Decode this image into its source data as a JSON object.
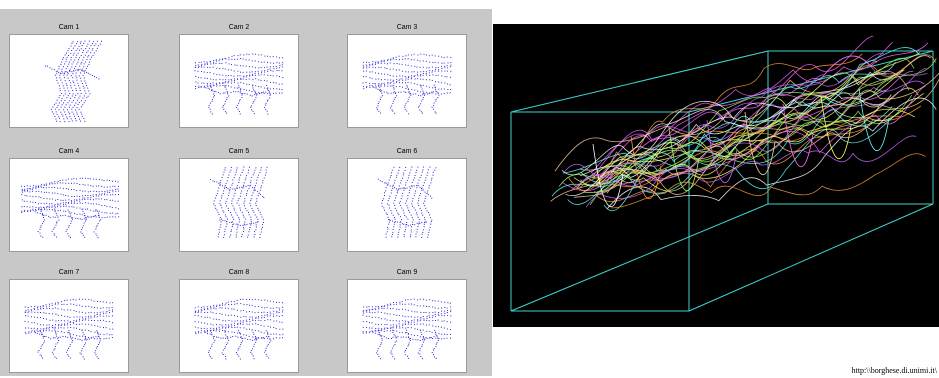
{
  "cameras": [
    {
      "label": "Cam 1",
      "pose": "side"
    },
    {
      "label": "Cam 2",
      "pose": "top"
    },
    {
      "label": "Cam 3",
      "pose": "top"
    },
    {
      "label": "Cam 4",
      "pose": "wide"
    },
    {
      "label": "Cam 5",
      "pose": "front"
    },
    {
      "label": "Cam 6",
      "pose": "front"
    },
    {
      "label": "Cam 7",
      "pose": "top"
    },
    {
      "label": "Cam 8",
      "pose": "top"
    },
    {
      "label": "Cam 9",
      "pose": "top"
    }
  ],
  "colors": {
    "panel_bg": "#c8c8c8",
    "marker": "#2a2ad8",
    "view_bg": "#000000",
    "box_edges": "#3fd2d2",
    "trajectories": [
      "#ff66ff",
      "#ffff66",
      "#66ffff",
      "#ffffff",
      "#ff9933",
      "#99ff66",
      "#cc66ff",
      "#ffcc99"
    ]
  },
  "credit": "http:\\\\borghese.di.unimi.it\\"
}
